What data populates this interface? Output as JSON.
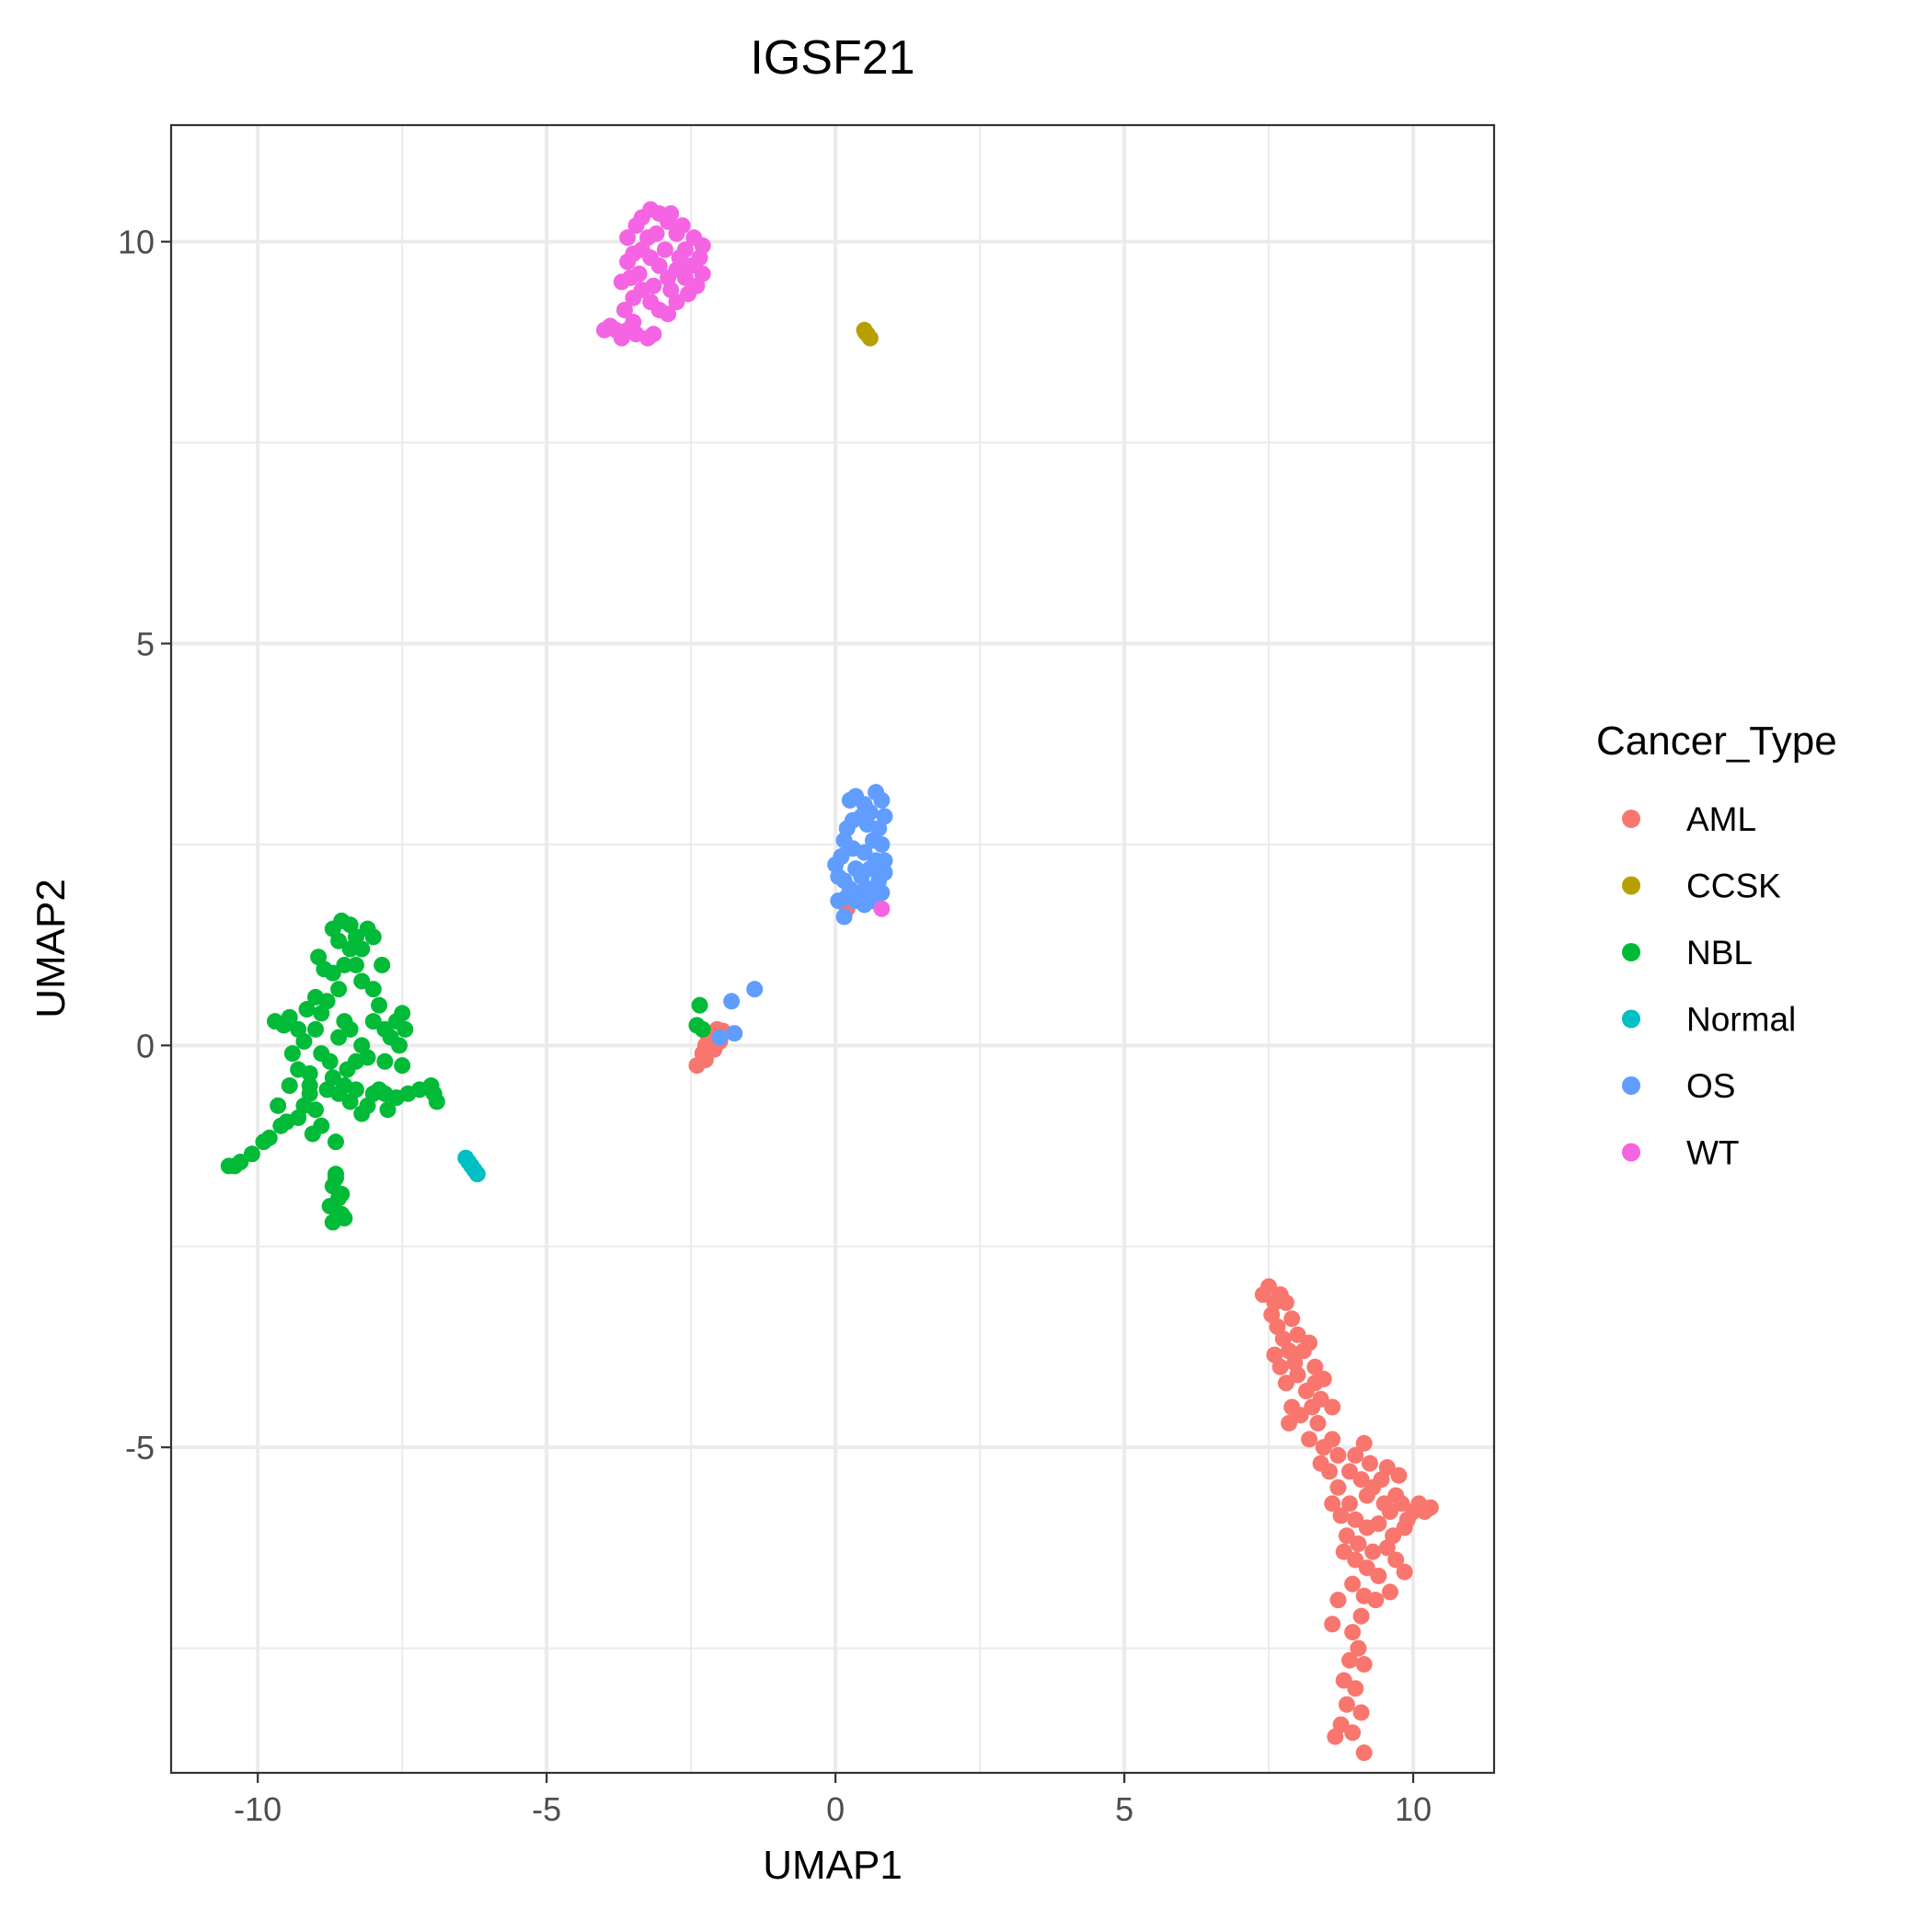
{
  "chart_data": {
    "type": "scatter",
    "title": "IGSF21",
    "xlabel": "UMAP1",
    "ylabel": "UMAP2",
    "xlim": [
      -11.5,
      11.4
    ],
    "ylim": [
      -9.05,
      11.45
    ],
    "x_major_ticks": [
      -10,
      -5,
      0,
      5,
      10
    ],
    "y_major_ticks": [
      -5,
      0,
      5,
      10
    ],
    "x_minor_ticks": [
      -7.5,
      -2.5,
      2.5,
      7.5
    ],
    "y_minor_ticks": [
      -7.5,
      -2.5,
      2.5,
      7.5
    ],
    "grid": true,
    "legend": {
      "title": "Cancer_Type",
      "position": "right"
    },
    "series": [
      {
        "name": "AML",
        "color": "#F8766D",
        "points": [
          [
            7.4,
            -3.1
          ],
          [
            7.5,
            -3.0
          ],
          [
            7.6,
            -3.2
          ],
          [
            7.55,
            -3.35
          ],
          [
            7.7,
            -3.1
          ],
          [
            7.8,
            -3.2
          ],
          [
            7.65,
            -3.5
          ],
          [
            7.75,
            -3.65
          ],
          [
            7.9,
            -3.4
          ],
          [
            7.85,
            -3.8
          ],
          [
            8.0,
            -3.6
          ],
          [
            8.1,
            -3.8
          ],
          [
            8.2,
            -3.7
          ],
          [
            7.95,
            -3.95
          ],
          [
            7.7,
            -4.0
          ],
          [
            7.8,
            -4.2
          ],
          [
            8.0,
            -4.1
          ],
          [
            8.15,
            -4.3
          ],
          [
            8.3,
            -4.2
          ],
          [
            8.25,
            -4.5
          ],
          [
            7.9,
            -4.5
          ],
          [
            8.05,
            -4.6
          ],
          [
            8.35,
            -4.7
          ],
          [
            8.4,
            -4.4
          ],
          [
            8.2,
            -4.9
          ],
          [
            7.85,
            -4.7
          ],
          [
            8.45,
            -5.0
          ],
          [
            8.6,
            -4.9
          ],
          [
            8.7,
            -5.1
          ],
          [
            8.55,
            -5.3
          ],
          [
            8.7,
            -5.5
          ],
          [
            8.9,
            -5.3
          ],
          [
            9.0,
            -5.1
          ],
          [
            9.1,
            -5.4
          ],
          [
            9.2,
            -5.6
          ],
          [
            9.3,
            -5.5
          ],
          [
            9.45,
            -5.4
          ],
          [
            9.5,
            -5.7
          ],
          [
            9.6,
            -5.8
          ],
          [
            9.7,
            -5.6
          ],
          [
            9.8,
            -5.7
          ],
          [
            9.9,
            -5.9
          ],
          [
            10.0,
            -5.8
          ],
          [
            10.1,
            -5.7
          ],
          [
            10.2,
            -5.8
          ],
          [
            10.3,
            -5.75
          ],
          [
            9.85,
            -6.0
          ],
          [
            9.65,
            -6.1
          ],
          [
            9.4,
            -5.95
          ],
          [
            9.2,
            -6.0
          ],
          [
            9.0,
            -5.9
          ],
          [
            8.9,
            -5.7
          ],
          [
            8.75,
            -5.85
          ],
          [
            8.85,
            -6.1
          ],
          [
            9.05,
            -6.2
          ],
          [
            9.3,
            -6.3
          ],
          [
            9.55,
            -6.25
          ],
          [
            9.7,
            -6.4
          ],
          [
            9.4,
            -6.6
          ],
          [
            9.2,
            -6.5
          ],
          [
            9.0,
            -6.4
          ],
          [
            8.8,
            -6.3
          ],
          [
            8.95,
            -6.7
          ],
          [
            9.15,
            -6.85
          ],
          [
            9.35,
            -6.9
          ],
          [
            9.1,
            -7.1
          ],
          [
            8.95,
            -7.3
          ],
          [
            9.05,
            -7.5
          ],
          [
            8.9,
            -7.65
          ],
          [
            9.15,
            -7.7
          ],
          [
            8.8,
            -7.9
          ],
          [
            9.0,
            -8.0
          ],
          [
            8.85,
            -8.2
          ],
          [
            9.1,
            -8.3
          ],
          [
            8.75,
            -8.45
          ],
          [
            8.95,
            -8.55
          ],
          [
            8.65,
            -8.6
          ],
          [
            9.15,
            -8.8
          ],
          [
            8.6,
            -7.2
          ],
          [
            8.7,
            -6.9
          ],
          [
            9.6,
            -6.8
          ],
          [
            9.85,
            -6.55
          ],
          [
            9.55,
            -5.25
          ],
          [
            9.75,
            -5.35
          ],
          [
            8.4,
            -5.2
          ],
          [
            8.6,
            -5.7
          ],
          [
            7.6,
            -3.85
          ],
          [
            8.3,
            -4.0
          ],
          [
            8.45,
            -4.15
          ],
          [
            8.6,
            -4.5
          ],
          [
            9.25,
            -5.2
          ],
          [
            9.15,
            -4.95
          ],
          [
            -2.4,
            -0.25
          ],
          [
            -2.3,
            -0.1
          ],
          [
            -2.25,
            0.0
          ],
          [
            -2.2,
            0.1
          ],
          [
            -2.15,
            0.15
          ],
          [
            -2.05,
            0.2
          ],
          [
            -2.0,
            0.05
          ],
          [
            -2.1,
            -0.05
          ],
          [
            -1.95,
            0.18
          ],
          [
            -2.25,
            -0.18
          ],
          [
            0.2,
            1.7
          ]
        ]
      },
      {
        "name": "CCSK",
        "color": "#B79F00",
        "points": [
          [
            0.5,
            8.9
          ],
          [
            0.55,
            8.85
          ],
          [
            0.6,
            8.8
          ],
          [
            0.52,
            8.87
          ]
        ]
      },
      {
        "name": "NBL",
        "color": "#00BA38",
        "points": [
          [
            -10.5,
            -1.5
          ],
          [
            -10.4,
            -1.5
          ],
          [
            -10.3,
            -1.45
          ],
          [
            -10.1,
            -1.35
          ],
          [
            -9.9,
            -1.2
          ],
          [
            -9.8,
            -1.15
          ],
          [
            -9.6,
            -1.0
          ],
          [
            -9.5,
            -0.95
          ],
          [
            -9.3,
            -0.9
          ],
          [
            -9.2,
            -0.75
          ],
          [
            -9.1,
            -0.6
          ],
          [
            -9.0,
            -0.8
          ],
          [
            -8.9,
            -1.0
          ],
          [
            -9.05,
            -1.1
          ],
          [
            -8.8,
            -0.55
          ],
          [
            -8.7,
            -0.4
          ],
          [
            -8.6,
            -0.6
          ],
          [
            -8.5,
            -0.5
          ],
          [
            -8.4,
            -0.7
          ],
          [
            -8.3,
            -0.55
          ],
          [
            -8.2,
            -0.85
          ],
          [
            -8.1,
            -0.75
          ],
          [
            -8.0,
            -0.6
          ],
          [
            -7.9,
            -0.55
          ],
          [
            -7.8,
            -0.6
          ],
          [
            -7.6,
            -0.65
          ],
          [
            -7.4,
            -0.6
          ],
          [
            -7.2,
            -0.55
          ],
          [
            -7.0,
            -0.5
          ],
          [
            -6.95,
            -0.6
          ],
          [
            -6.9,
            -0.7
          ],
          [
            -7.75,
            -0.8
          ],
          [
            -8.65,
            -1.2
          ],
          [
            -9.45,
            -0.5
          ],
          [
            -9.3,
            -0.3
          ],
          [
            -9.4,
            -0.1
          ],
          [
            -9.2,
            0.05
          ],
          [
            -9.3,
            0.2
          ],
          [
            -9.55,
            0.25
          ],
          [
            -9.7,
            0.3
          ],
          [
            -9.45,
            0.35
          ],
          [
            -9.0,
            0.2
          ],
          [
            -8.9,
            0.4
          ],
          [
            -8.8,
            0.55
          ],
          [
            -8.6,
            0.7
          ],
          [
            -8.7,
            0.9
          ],
          [
            -8.5,
            1.0
          ],
          [
            -8.4,
            1.2
          ],
          [
            -8.6,
            1.3
          ],
          [
            -8.7,
            1.45
          ],
          [
            -8.55,
            1.55
          ],
          [
            -8.4,
            1.5
          ],
          [
            -8.3,
            1.35
          ],
          [
            -8.2,
            1.2
          ],
          [
            -8.1,
            1.45
          ],
          [
            -8.0,
            1.35
          ],
          [
            -8.3,
            1.0
          ],
          [
            -8.2,
            0.8
          ],
          [
            -8.0,
            0.7
          ],
          [
            -7.9,
            0.5
          ],
          [
            -8.0,
            0.3
          ],
          [
            -7.8,
            0.2
          ],
          [
            -7.7,
            0.1
          ],
          [
            -7.6,
            0.3
          ],
          [
            -7.5,
            0.4
          ],
          [
            -7.45,
            0.2
          ],
          [
            -7.55,
            0.0
          ],
          [
            -7.8,
            -0.2
          ],
          [
            -7.5,
            -0.25
          ],
          [
            -8.85,
            0.95
          ],
          [
            -8.95,
            1.1
          ],
          [
            -9.0,
            0.6
          ],
          [
            -9.15,
            0.45
          ],
          [
            -8.6,
            0.1
          ],
          [
            -8.5,
            0.3
          ],
          [
            -8.4,
            0.2
          ],
          [
            -8.75,
            -0.2
          ],
          [
            -8.9,
            -0.1
          ],
          [
            -9.1,
            -0.35
          ],
          [
            -8.3,
            -0.2
          ],
          [
            -8.2,
            0.0
          ],
          [
            -7.85,
            1.0
          ],
          [
            -8.1,
            -0.15
          ],
          [
            -8.65,
            -1.6
          ],
          [
            -8.7,
            -1.75
          ],
          [
            -8.6,
            -1.9
          ],
          [
            -8.75,
            -2.0
          ],
          [
            -8.55,
            -2.1
          ],
          [
            -8.7,
            -2.2
          ],
          [
            -8.5,
            -2.15
          ],
          [
            -8.65,
            -1.65
          ],
          [
            -8.55,
            -1.85
          ],
          [
            -9.65,
            -0.75
          ],
          [
            -9.1,
            -0.5
          ],
          [
            -8.45,
            -0.3
          ],
          [
            -2.35,
            0.5
          ],
          [
            -2.4,
            0.25
          ],
          [
            -2.3,
            0.2
          ]
        ]
      },
      {
        "name": "Normal",
        "color": "#00BFC4",
        "points": [
          [
            -6.4,
            -1.4
          ],
          [
            -6.35,
            -1.45
          ],
          [
            -6.3,
            -1.5
          ],
          [
            -6.25,
            -1.55
          ],
          [
            -6.2,
            -1.6
          ]
        ]
      },
      {
        "name": "OS",
        "color": "#619CFF",
        "points": [
          [
            0.25,
            3.05
          ],
          [
            0.35,
            3.1
          ],
          [
            0.5,
            3.0
          ],
          [
            0.6,
            2.9
          ],
          [
            0.7,
            3.15
          ],
          [
            0.8,
            3.05
          ],
          [
            0.85,
            2.85
          ],
          [
            0.75,
            2.7
          ],
          [
            0.55,
            2.75
          ],
          [
            0.45,
            2.85
          ],
          [
            0.3,
            2.8
          ],
          [
            0.2,
            2.7
          ],
          [
            0.65,
            2.55
          ],
          [
            0.8,
            2.5
          ],
          [
            0.85,
            2.3
          ],
          [
            0.7,
            2.3
          ],
          [
            0.5,
            2.4
          ],
          [
            0.3,
            2.45
          ],
          [
            0.15,
            2.55
          ],
          [
            0.1,
            2.35
          ],
          [
            0.0,
            2.25
          ],
          [
            0.05,
            2.1
          ],
          [
            0.15,
            2.05
          ],
          [
            0.25,
            1.95
          ],
          [
            0.4,
            1.9
          ],
          [
            0.55,
            1.95
          ],
          [
            0.75,
            2.05
          ],
          [
            0.85,
            2.15
          ],
          [
            0.8,
            1.9
          ],
          [
            0.65,
            1.8
          ],
          [
            0.5,
            1.75
          ],
          [
            0.35,
            1.8
          ],
          [
            0.2,
            1.85
          ],
          [
            0.05,
            1.8
          ],
          [
            0.15,
            1.6
          ],
          [
            0.45,
            2.1
          ],
          [
            0.6,
            2.2
          ],
          [
            0.35,
            2.2
          ],
          [
            -1.4,
            0.7
          ],
          [
            -1.8,
            0.55
          ],
          [
            -1.75,
            0.15
          ],
          [
            -2.0,
            0.1
          ]
        ]
      },
      {
        "name": "WT",
        "color": "#F564E3",
        "points": [
          [
            -4.0,
            8.9
          ],
          [
            -3.9,
            8.95
          ],
          [
            -3.8,
            8.9
          ],
          [
            -3.7,
            8.8
          ],
          [
            -3.6,
            8.9
          ],
          [
            -3.5,
            9.0
          ],
          [
            -3.45,
            8.85
          ],
          [
            -3.25,
            8.8
          ],
          [
            -3.15,
            8.85
          ],
          [
            -3.65,
            9.15
          ],
          [
            -3.5,
            9.3
          ],
          [
            -3.35,
            9.4
          ],
          [
            -3.2,
            9.25
          ],
          [
            -3.05,
            9.15
          ],
          [
            -2.9,
            9.1
          ],
          [
            -2.75,
            9.25
          ],
          [
            -2.55,
            9.35
          ],
          [
            -2.4,
            9.45
          ],
          [
            -2.3,
            9.6
          ],
          [
            -2.35,
            9.8
          ],
          [
            -2.3,
            9.95
          ],
          [
            -2.45,
            10.05
          ],
          [
            -2.6,
            9.9
          ],
          [
            -2.75,
            10.1
          ],
          [
            -2.9,
            10.25
          ],
          [
            -3.05,
            10.35
          ],
          [
            -3.2,
            10.4
          ],
          [
            -3.35,
            10.3
          ],
          [
            -3.45,
            10.2
          ],
          [
            -3.6,
            10.05
          ],
          [
            -3.5,
            9.85
          ],
          [
            -3.35,
            9.9
          ],
          [
            -3.2,
            9.8
          ],
          [
            -3.05,
            9.7
          ],
          [
            -2.9,
            9.55
          ],
          [
            -2.75,
            9.65
          ],
          [
            -2.6,
            9.55
          ],
          [
            -3.4,
            9.6
          ],
          [
            -3.55,
            9.55
          ],
          [
            -3.25,
            10.05
          ],
          [
            -2.95,
            9.9
          ],
          [
            -2.7,
            9.8
          ],
          [
            -2.5,
            9.7
          ],
          [
            -2.85,
            10.35
          ],
          [
            -3.1,
            10.1
          ],
          [
            -3.6,
            9.75
          ],
          [
            -3.7,
            9.5
          ],
          [
            -2.65,
            10.2
          ],
          [
            -3.15,
            9.45
          ],
          [
            -2.85,
            9.4
          ],
          [
            0.8,
            1.7
          ]
        ]
      }
    ]
  }
}
